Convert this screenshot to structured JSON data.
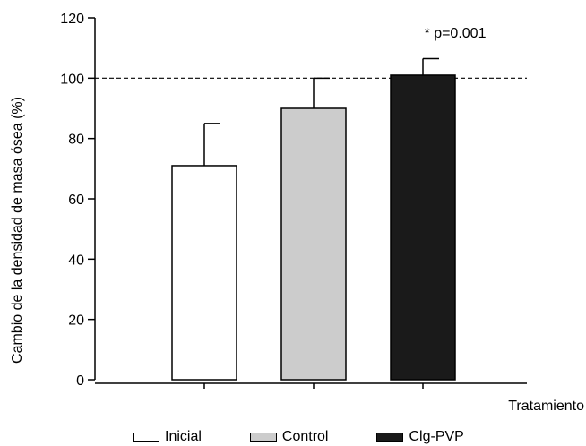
{
  "chart_data": {
    "type": "bar",
    "xlabel": "Tratamiento",
    "ylabel": "Cambio de la densidad de masa ósea (%)",
    "ylim": [
      0,
      120
    ],
    "yticks": [
      0,
      20,
      40,
      60,
      80,
      100,
      120
    ],
    "reference_line": 100,
    "annotation": "* p=0.001",
    "grid": false,
    "legend_position": "bottom",
    "categories": [
      "Inicial",
      "Control",
      "Clg-PVP"
    ],
    "values": [
      71,
      90,
      101
    ],
    "errors": [
      14,
      10,
      5.5
    ],
    "colors": [
      "#ffffff",
      "#cccccc",
      "#1a1a1a"
    ]
  }
}
